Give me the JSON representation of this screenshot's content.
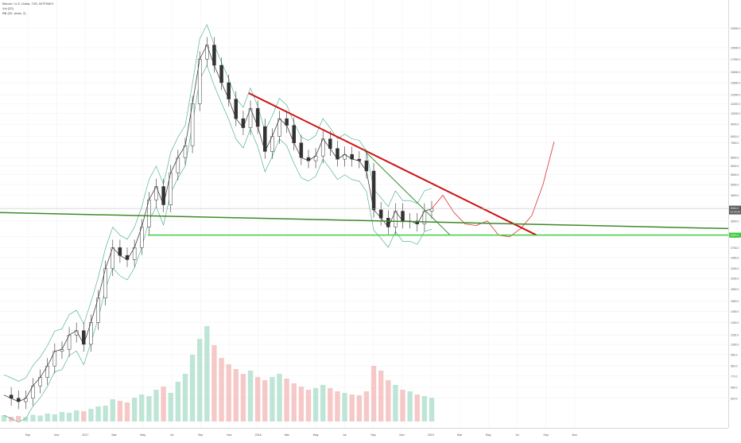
{
  "legend": {
    "title": "Bitcoin / U.S. Dollar, 72D, BITFINEX",
    "vol": "Vol (20)",
    "bb": "BB (20, close, 2)"
  },
  "chart_data": {
    "type": "line",
    "title": "Bitcoin / U.S. Dollar, 72D, BITFINEX",
    "xlabel": "",
    "ylabel": "",
    "scale": "log",
    "ylim": [
      600,
      28000
    ],
    "price_ticks": [
      "23000.0",
      "19000.0",
      "17000.0",
      "15000.0",
      "13500.0",
      "12000.0",
      "11000.0",
      "10000.0",
      "9000.0",
      "8000.0",
      "7500.0",
      "6500.0",
      "6000.0",
      "5500.0",
      "5000.0",
      "4500.0",
      "4000.0",
      "3500.0",
      "3000.0",
      "2700.0",
      "2450.0",
      "2200.0",
      "2000.0",
      "1800.0",
      "1600.0",
      "1450.0",
      "1300.0",
      "1150.0",
      "1050.0",
      "950.0",
      "850.0",
      "770.0",
      "690.0",
      "620.0"
    ],
    "time_ticks": [
      "Sep",
      "Nov",
      "2017",
      "Mar",
      "May",
      "Jul",
      "Sep",
      "Nov",
      "2018",
      "Mar",
      "May",
      "Jul",
      "Sep",
      "Nov",
      "2019",
      "Mar",
      "May",
      "Jul",
      "Sep",
      "Nov"
    ],
    "current_price_label": "3940.0",
    "current_price_sub": "03:26:25",
    "support_label": "3200.0",
    "series": [
      {
        "values": [
          640,
          620,
          600,
          620,
          700,
          760,
          850,
          980,
          1000,
          1150,
          1200,
          1050,
          1300,
          1650,
          2200,
          2700,
          2500,
          2400,
          2700,
          3300,
          4300,
          4900,
          4100,
          5600,
          6500,
          7300,
          11000,
          17000,
          19500,
          16000,
          13500,
          11500,
          9500,
          8700,
          10500,
          8800,
          6900,
          8000,
          9500,
          8900,
          7500,
          6500,
          6300,
          6600,
          7800,
          7100,
          6400,
          6700,
          6400,
          6300,
          5700,
          3900,
          3600,
          3300,
          3850,
          3500,
          3500,
          3400,
          3850,
          3940
        ],
        "color": "#333333"
      },
      {
        "values": [
          3940,
          4500,
          3800,
          3400,
          3350,
          3500,
          3050,
          3000,
          3250,
          3700,
          5000,
          7600
        ],
        "color": "#e03030"
      }
    ],
    "trend_lines": [
      {
        "label": "",
        "color": "#d01010",
        "from": [
          "2018-01",
          12200
        ],
        "to": [
          "2019-09",
          3050
        ]
      },
      {
        "label": "",
        "color": "#2e8b2e",
        "from": [
          "2018-09",
          7000
        ],
        "to": [
          "2019-03",
          3050
        ]
      },
      {
        "label": "",
        "color": "#3c8a2a",
        "from": [
          "2016-07",
          3800
        ],
        "to": [
          "2019-12",
          3250
        ]
      },
      {
        "label": "",
        "color": "#33cc33",
        "from": [
          "2017-06",
          3050
        ],
        "to": [
          "2019-12",
          3050
        ]
      }
    ],
    "volume": [
      40,
      30,
      35,
      28,
      42,
      38,
      50,
      45,
      60,
      55,
      70,
      65,
      80,
      95,
      100,
      140,
      130,
      120,
      150,
      170,
      160,
      200,
      220,
      180,
      250,
      300,
      420,
      520,
      600,
      480,
      400,
      360,
      330,
      300,
      320,
      280,
      260,
      280,
      300,
      270,
      240,
      220,
      200,
      210,
      230,
      210,
      190,
      180,
      170,
      165,
      190,
      350,
      320,
      260,
      230,
      200,
      190,
      170,
      160,
      150
    ]
  }
}
